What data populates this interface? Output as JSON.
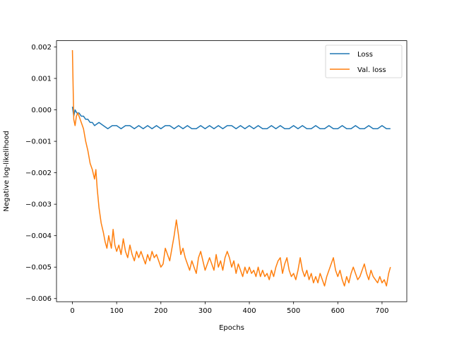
{
  "chart_data": {
    "type": "line",
    "title": "",
    "xlabel": "Epochs",
    "ylabel": "Negative log-likelihood",
    "xlim": [
      -36,
      756
    ],
    "ylim": [
      -0.0061,
      0.0022
    ],
    "xticks": [
      0,
      100,
      200,
      300,
      400,
      500,
      600,
      700
    ],
    "xtick_labels": [
      "0",
      "100",
      "200",
      "300",
      "400",
      "500",
      "600",
      "700"
    ],
    "yticks": [
      0.002,
      0.001,
      0.0,
      -0.001,
      -0.002,
      -0.003,
      -0.004,
      -0.005,
      -0.006
    ],
    "ytick_labels": [
      "0.002",
      "0.001",
      "0.000",
      "−0.001",
      "−0.002",
      "−0.003",
      "−0.004",
      "−0.005",
      "−0.006"
    ],
    "legend_position": "top-right",
    "grid": false,
    "series": [
      {
        "name": "Loss",
        "color": "#1f77b4",
        "points": [
          [
            0,
            0.0001
          ],
          [
            3,
            -0.0002
          ],
          [
            6,
            0.0
          ],
          [
            10,
            -0.0001
          ],
          [
            15,
            -0.0001
          ],
          [
            20,
            -0.0002
          ],
          [
            25,
            -0.0002
          ],
          [
            30,
            -0.0003
          ],
          [
            35,
            -0.0003
          ],
          [
            40,
            -0.0004
          ],
          [
            45,
            -0.0004
          ],
          [
            50,
            -0.0005
          ],
          [
            60,
            -0.0004
          ],
          [
            70,
            -0.0005
          ],
          [
            80,
            -0.0006
          ],
          [
            90,
            -0.0005
          ],
          [
            100,
            -0.0005
          ],
          [
            110,
            -0.0006
          ],
          [
            120,
            -0.0005
          ],
          [
            130,
            -0.0005
          ],
          [
            140,
            -0.0006
          ],
          [
            150,
            -0.0005
          ],
          [
            160,
            -0.0006
          ],
          [
            170,
            -0.0005
          ],
          [
            180,
            -0.0006
          ],
          [
            190,
            -0.0005
          ],
          [
            200,
            -0.0006
          ],
          [
            210,
            -0.0005
          ],
          [
            220,
            -0.0005
          ],
          [
            230,
            -0.0006
          ],
          [
            240,
            -0.0005
          ],
          [
            250,
            -0.0006
          ],
          [
            260,
            -0.0005
          ],
          [
            270,
            -0.0006
          ],
          [
            280,
            -0.0006
          ],
          [
            290,
            -0.0005
          ],
          [
            300,
            -0.0006
          ],
          [
            310,
            -0.0005
          ],
          [
            320,
            -0.0006
          ],
          [
            330,
            -0.0005
          ],
          [
            340,
            -0.0006
          ],
          [
            350,
            -0.0005
          ],
          [
            360,
            -0.0005
          ],
          [
            370,
            -0.0006
          ],
          [
            380,
            -0.0005
          ],
          [
            390,
            -0.0006
          ],
          [
            400,
            -0.0005
          ],
          [
            410,
            -0.0006
          ],
          [
            420,
            -0.0005
          ],
          [
            430,
            -0.0006
          ],
          [
            440,
            -0.0006
          ],
          [
            450,
            -0.0005
          ],
          [
            460,
            -0.0006
          ],
          [
            470,
            -0.0005
          ],
          [
            480,
            -0.0006
          ],
          [
            490,
            -0.0006
          ],
          [
            500,
            -0.0005
          ],
          [
            510,
            -0.0006
          ],
          [
            520,
            -0.0005
          ],
          [
            530,
            -0.0006
          ],
          [
            540,
            -0.0006
          ],
          [
            550,
            -0.0005
          ],
          [
            560,
            -0.0006
          ],
          [
            570,
            -0.0006
          ],
          [
            580,
            -0.0005
          ],
          [
            590,
            -0.0006
          ],
          [
            600,
            -0.0006
          ],
          [
            610,
            -0.0005
          ],
          [
            620,
            -0.0006
          ],
          [
            630,
            -0.0006
          ],
          [
            640,
            -0.0005
          ],
          [
            650,
            -0.0006
          ],
          [
            660,
            -0.0006
          ],
          [
            670,
            -0.0005
          ],
          [
            680,
            -0.0006
          ],
          [
            690,
            -0.0006
          ],
          [
            700,
            -0.0005
          ],
          [
            710,
            -0.0006
          ],
          [
            719,
            -0.0006
          ]
        ]
      },
      {
        "name": "Val. loss",
        "color": "#ff7f0e",
        "points": [
          [
            0,
            0.0019
          ],
          [
            3,
            -0.0003
          ],
          [
            6,
            -0.0005
          ],
          [
            9,
            -0.0002
          ],
          [
            12,
            -0.0001
          ],
          [
            15,
            -0.0002
          ],
          [
            20,
            -0.0004
          ],
          [
            25,
            -0.0006
          ],
          [
            30,
            -0.001
          ],
          [
            35,
            -0.0013
          ],
          [
            40,
            -0.0017
          ],
          [
            45,
            -0.0019
          ],
          [
            50,
            -0.0022
          ],
          [
            53,
            -0.0019
          ],
          [
            56,
            -0.0025
          ],
          [
            60,
            -0.0031
          ],
          [
            65,
            -0.0036
          ],
          [
            70,
            -0.0039
          ],
          [
            74,
            -0.0042
          ],
          [
            78,
            -0.0044
          ],
          [
            82,
            -0.004
          ],
          [
            88,
            -0.0044
          ],
          [
            92,
            -0.0038
          ],
          [
            96,
            -0.0043
          ],
          [
            100,
            -0.0045
          ],
          [
            105,
            -0.0043
          ],
          [
            110,
            -0.0046
          ],
          [
            115,
            -0.0041
          ],
          [
            120,
            -0.0045
          ],
          [
            125,
            -0.0047
          ],
          [
            130,
            -0.0043
          ],
          [
            135,
            -0.0046
          ],
          [
            140,
            -0.0048
          ],
          [
            145,
            -0.0045
          ],
          [
            150,
            -0.0047
          ],
          [
            155,
            -0.0045
          ],
          [
            160,
            -0.0047
          ],
          [
            165,
            -0.0049
          ],
          [
            170,
            -0.0046
          ],
          [
            175,
            -0.0048
          ],
          [
            180,
            -0.0045
          ],
          [
            185,
            -0.0047
          ],
          [
            190,
            -0.0046
          ],
          [
            195,
            -0.0048
          ],
          [
            200,
            -0.005
          ],
          [
            205,
            -0.0049
          ],
          [
            210,
            -0.0044
          ],
          [
            215,
            -0.0046
          ],
          [
            220,
            -0.0048
          ],
          [
            225,
            -0.0044
          ],
          [
            230,
            -0.004
          ],
          [
            235,
            -0.0035
          ],
          [
            240,
            -0.004
          ],
          [
            245,
            -0.0046
          ],
          [
            250,
            -0.0044
          ],
          [
            255,
            -0.0047
          ],
          [
            260,
            -0.0049
          ],
          [
            265,
            -0.0051
          ],
          [
            270,
            -0.0048
          ],
          [
            275,
            -0.005
          ],
          [
            280,
            -0.0052
          ],
          [
            285,
            -0.0047
          ],
          [
            290,
            -0.0045
          ],
          [
            295,
            -0.0048
          ],
          [
            300,
            -0.0051
          ],
          [
            305,
            -0.0049
          ],
          [
            310,
            -0.0047
          ],
          [
            315,
            -0.0049
          ],
          [
            320,
            -0.0051
          ],
          [
            325,
            -0.0046
          ],
          [
            330,
            -0.005
          ],
          [
            335,
            -0.0048
          ],
          [
            340,
            -0.0051
          ],
          [
            345,
            -0.0047
          ],
          [
            350,
            -0.0045
          ],
          [
            355,
            -0.0047
          ],
          [
            360,
            -0.005
          ],
          [
            365,
            -0.0048
          ],
          [
            370,
            -0.0052
          ],
          [
            375,
            -0.0049
          ],
          [
            380,
            -0.0051
          ],
          [
            385,
            -0.0053
          ],
          [
            390,
            -0.005
          ],
          [
            395,
            -0.0052
          ],
          [
            400,
            -0.005
          ],
          [
            405,
            -0.0052
          ],
          [
            410,
            -0.0051
          ],
          [
            415,
            -0.0053
          ],
          [
            420,
            -0.005
          ],
          [
            425,
            -0.0053
          ],
          [
            430,
            -0.0051
          ],
          [
            435,
            -0.0053
          ],
          [
            440,
            -0.0052
          ],
          [
            445,
            -0.0054
          ],
          [
            450,
            -0.0051
          ],
          [
            455,
            -0.0053
          ],
          [
            460,
            -0.005
          ],
          [
            465,
            -0.0048
          ],
          [
            470,
            -0.0047
          ],
          [
            475,
            -0.0052
          ],
          [
            480,
            -0.0049
          ],
          [
            485,
            -0.0047
          ],
          [
            490,
            -0.0051
          ],
          [
            495,
            -0.0053
          ],
          [
            500,
            -0.0052
          ],
          [
            505,
            -0.0054
          ],
          [
            510,
            -0.0051
          ],
          [
            515,
            -0.0047
          ],
          [
            520,
            -0.0051
          ],
          [
            525,
            -0.0053
          ],
          [
            530,
            -0.0051
          ],
          [
            535,
            -0.0054
          ],
          [
            540,
            -0.0052
          ],
          [
            545,
            -0.0055
          ],
          [
            550,
            -0.0053
          ],
          [
            555,
            -0.0055
          ],
          [
            560,
            -0.0052
          ],
          [
            565,
            -0.0054
          ],
          [
            570,
            -0.0056
          ],
          [
            575,
            -0.0053
          ],
          [
            580,
            -0.0051
          ],
          [
            585,
            -0.0049
          ],
          [
            590,
            -0.0047
          ],
          [
            595,
            -0.0051
          ],
          [
            600,
            -0.0053
          ],
          [
            605,
            -0.0051
          ],
          [
            610,
            -0.0054
          ],
          [
            615,
            -0.0056
          ],
          [
            620,
            -0.0053
          ],
          [
            625,
            -0.0055
          ],
          [
            630,
            -0.0052
          ],
          [
            635,
            -0.005
          ],
          [
            640,
            -0.0052
          ],
          [
            645,
            -0.0054
          ],
          [
            650,
            -0.0053
          ],
          [
            655,
            -0.0051
          ],
          [
            660,
            -0.0049
          ],
          [
            665,
            -0.0052
          ],
          [
            670,
            -0.0054
          ],
          [
            675,
            -0.0051
          ],
          [
            680,
            -0.0053
          ],
          [
            685,
            -0.0054
          ],
          [
            690,
            -0.0055
          ],
          [
            695,
            -0.0053
          ],
          [
            700,
            -0.0055
          ],
          [
            705,
            -0.0054
          ],
          [
            710,
            -0.0056
          ],
          [
            715,
            -0.0052
          ],
          [
            719,
            -0.005
          ]
        ]
      }
    ]
  }
}
